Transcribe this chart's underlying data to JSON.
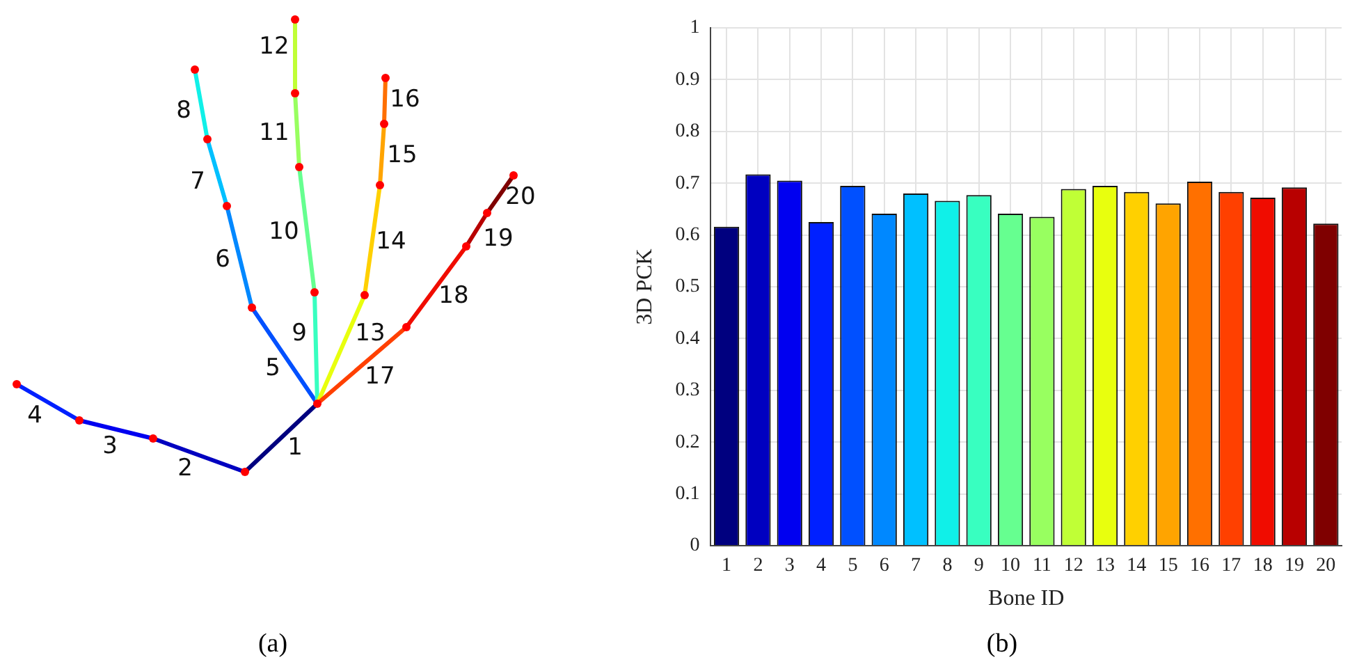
{
  "chart_data": [
    {
      "type": "other",
      "annotations": [
        "(a)"
      ],
      "categories": [
        "1",
        "2",
        "3",
        "4",
        "5",
        "6",
        "7",
        "8",
        "9",
        "10",
        "11",
        "12",
        "13",
        "14",
        "15",
        "16",
        "17",
        "18",
        "19",
        "20"
      ],
      "colors": [
        "#00007f",
        "#0000c0",
        "#0000f0",
        "#0020ff",
        "#0050ff",
        "#0088ff",
        "#00c0ff",
        "#10f0e8",
        "#38ffc0",
        "#66ff90",
        "#98ff60",
        "#c0ff36",
        "#e8ff0e",
        "#ffd000",
        "#ffa400",
        "#ff7000",
        "#ff4000",
        "#f00c00",
        "#b80000",
        "#7f0000"
      ]
    },
    {
      "type": "bar",
      "annotations": [
        "(b)"
      ],
      "xlabel": "Bone ID",
      "ylabel": "3D PCK",
      "categories": [
        "1",
        "2",
        "3",
        "4",
        "5",
        "6",
        "7",
        "8",
        "9",
        "10",
        "11",
        "12",
        "13",
        "14",
        "15",
        "16",
        "17",
        "18",
        "19",
        "20"
      ],
      "values": [
        0.616,
        0.717,
        0.705,
        0.625,
        0.695,
        0.641,
        0.68,
        0.666,
        0.677,
        0.641,
        0.635,
        0.689,
        0.695,
        0.683,
        0.661,
        0.703,
        0.683,
        0.672,
        0.692,
        0.622
      ],
      "colors": [
        "#00007f",
        "#0000c0",
        "#0000f0",
        "#0020ff",
        "#0050ff",
        "#0088ff",
        "#00c0ff",
        "#10f0e8",
        "#38ffc0",
        "#66ff90",
        "#98ff60",
        "#c0ff36",
        "#e8ff0e",
        "#ffd000",
        "#ffa400",
        "#ff7000",
        "#ff4000",
        "#f00c00",
        "#b80000",
        "#7f0000"
      ],
      "ylim": [
        0,
        1
      ],
      "yticks": [
        0,
        0.1,
        0.2,
        0.3,
        0.4,
        0.5,
        0.6,
        0.7,
        0.8,
        0.9,
        1
      ],
      "grid": true
    }
  ]
}
